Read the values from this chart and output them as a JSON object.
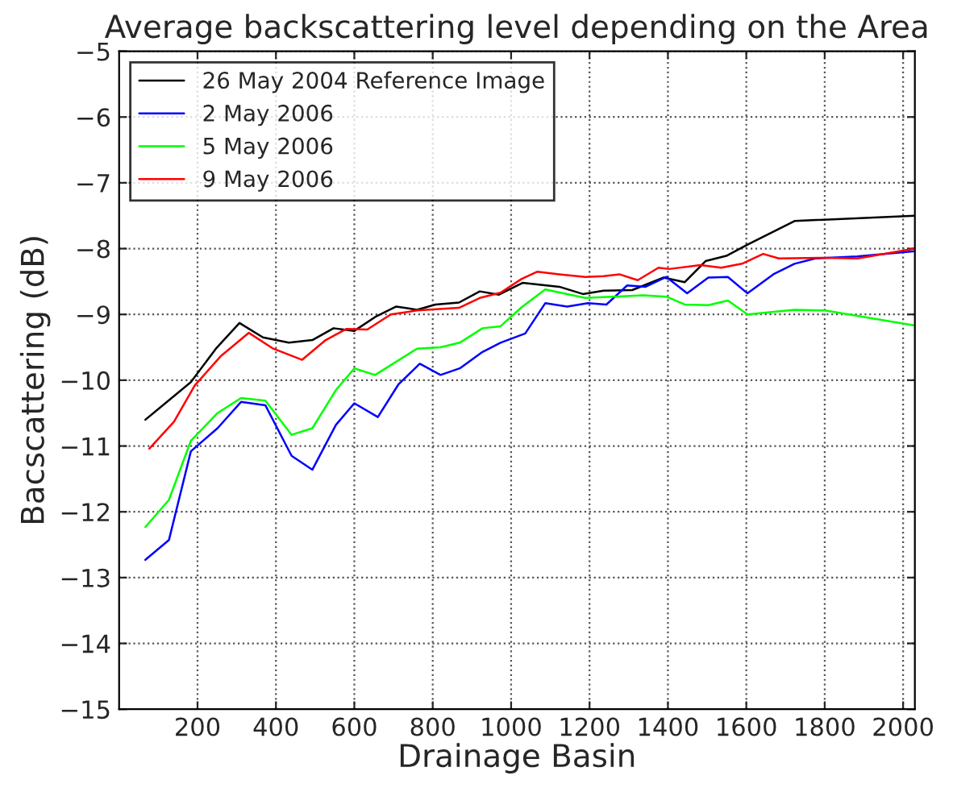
{
  "chart_data": {
    "type": "line",
    "title": "Average backscattering level depending on the Area",
    "xlabel": "Drainage Basin",
    "ylabel": "Bacscattering (dB)",
    "xlim": [
      0,
      2030
    ],
    "ylim": [
      -15,
      -5
    ],
    "xticks": [
      200,
      400,
      600,
      800,
      1000,
      1200,
      1400,
      1600,
      1800,
      2000
    ],
    "yticks": [
      -15,
      -14,
      -13,
      -12,
      -11,
      -10,
      -9,
      -8,
      -7,
      -6,
      -5
    ],
    "grid": true,
    "legend": "top left",
    "line_style": "solid",
    "marker": "none",
    "series": [
      {
        "name": "26 May 2004 Reference Image",
        "color": "#000000",
        "x": [
          67,
          183,
          247,
          307,
          367,
          433,
          493,
          547,
          600,
          653,
          707,
          760,
          807,
          867,
          920,
          969,
          1029,
          1123,
          1183,
          1236,
          1309,
          1389,
          1443,
          1496,
          1549,
          1603,
          1723,
          2030
        ],
        "values": [
          -10.6,
          -10.03,
          -9.52,
          -9.13,
          -9.35,
          -9.43,
          -9.39,
          -9.21,
          -9.25,
          -9.04,
          -8.88,
          -8.93,
          -8.85,
          -8.82,
          -8.65,
          -8.7,
          -8.52,
          -8.58,
          -8.69,
          -8.64,
          -8.63,
          -8.44,
          -8.51,
          -8.19,
          -8.11,
          -7.94,
          -7.58,
          -7.5
        ]
      },
      {
        "name": "2 May 2006",
        "color": "#0000ff",
        "x": [
          67,
          127,
          183,
          251,
          311,
          373,
          440,
          493,
          553,
          600,
          660,
          713,
          767,
          820,
          869,
          927,
          973,
          1036,
          1087,
          1143,
          1196,
          1243,
          1296,
          1343,
          1396,
          1449,
          1503,
          1553,
          1603,
          1669,
          1723,
          1776,
          1883,
          2030
        ],
        "values": [
          -12.73,
          -12.43,
          -11.08,
          -10.73,
          -10.33,
          -10.38,
          -11.15,
          -11.36,
          -10.68,
          -10.35,
          -10.56,
          -10.06,
          -9.75,
          -9.92,
          -9.82,
          -9.57,
          -9.43,
          -9.29,
          -8.83,
          -8.88,
          -8.83,
          -8.85,
          -8.56,
          -8.58,
          -8.43,
          -8.68,
          -8.44,
          -8.43,
          -8.68,
          -8.39,
          -8.23,
          -8.15,
          -8.12,
          -8.04
        ]
      },
      {
        "name": "5 May 2006",
        "color": "#00ff00",
        "x": [
          67,
          127,
          183,
          251,
          311,
          373,
          440,
          493,
          553,
          600,
          653,
          760,
          820,
          869,
          927,
          973,
          1027,
          1087,
          1189,
          1336,
          1396,
          1443,
          1503,
          1553,
          1603,
          1723,
          1800,
          2030
        ],
        "values": [
          -12.23,
          -11.82,
          -10.92,
          -10.5,
          -10.27,
          -10.31,
          -10.83,
          -10.73,
          -10.15,
          -9.82,
          -9.92,
          -9.52,
          -9.5,
          -9.43,
          -9.21,
          -9.18,
          -8.89,
          -8.62,
          -8.75,
          -8.71,
          -8.73,
          -8.85,
          -8.86,
          -8.79,
          -9.0,
          -8.93,
          -8.94,
          -9.17
        ]
      },
      {
        "name": "9 May 2006",
        "color": "#ff0000",
        "x": [
          77,
          140,
          193,
          260,
          331,
          393,
          467,
          527,
          580,
          633,
          693,
          760,
          867,
          920,
          973,
          1027,
          1067,
          1123,
          1189,
          1236,
          1276,
          1323,
          1376,
          1403,
          1483,
          1536,
          1589,
          1643,
          1683,
          1800,
          1884,
          2030
        ],
        "values": [
          -11.04,
          -10.63,
          -10.08,
          -9.63,
          -9.28,
          -9.52,
          -9.69,
          -9.39,
          -9.22,
          -9.23,
          -9.0,
          -8.94,
          -8.9,
          -8.75,
          -8.67,
          -8.46,
          -8.35,
          -8.39,
          -8.43,
          -8.42,
          -8.39,
          -8.48,
          -8.29,
          -8.31,
          -8.25,
          -8.29,
          -8.23,
          -8.08,
          -8.15,
          -8.14,
          -8.15,
          -8.0
        ]
      }
    ]
  }
}
